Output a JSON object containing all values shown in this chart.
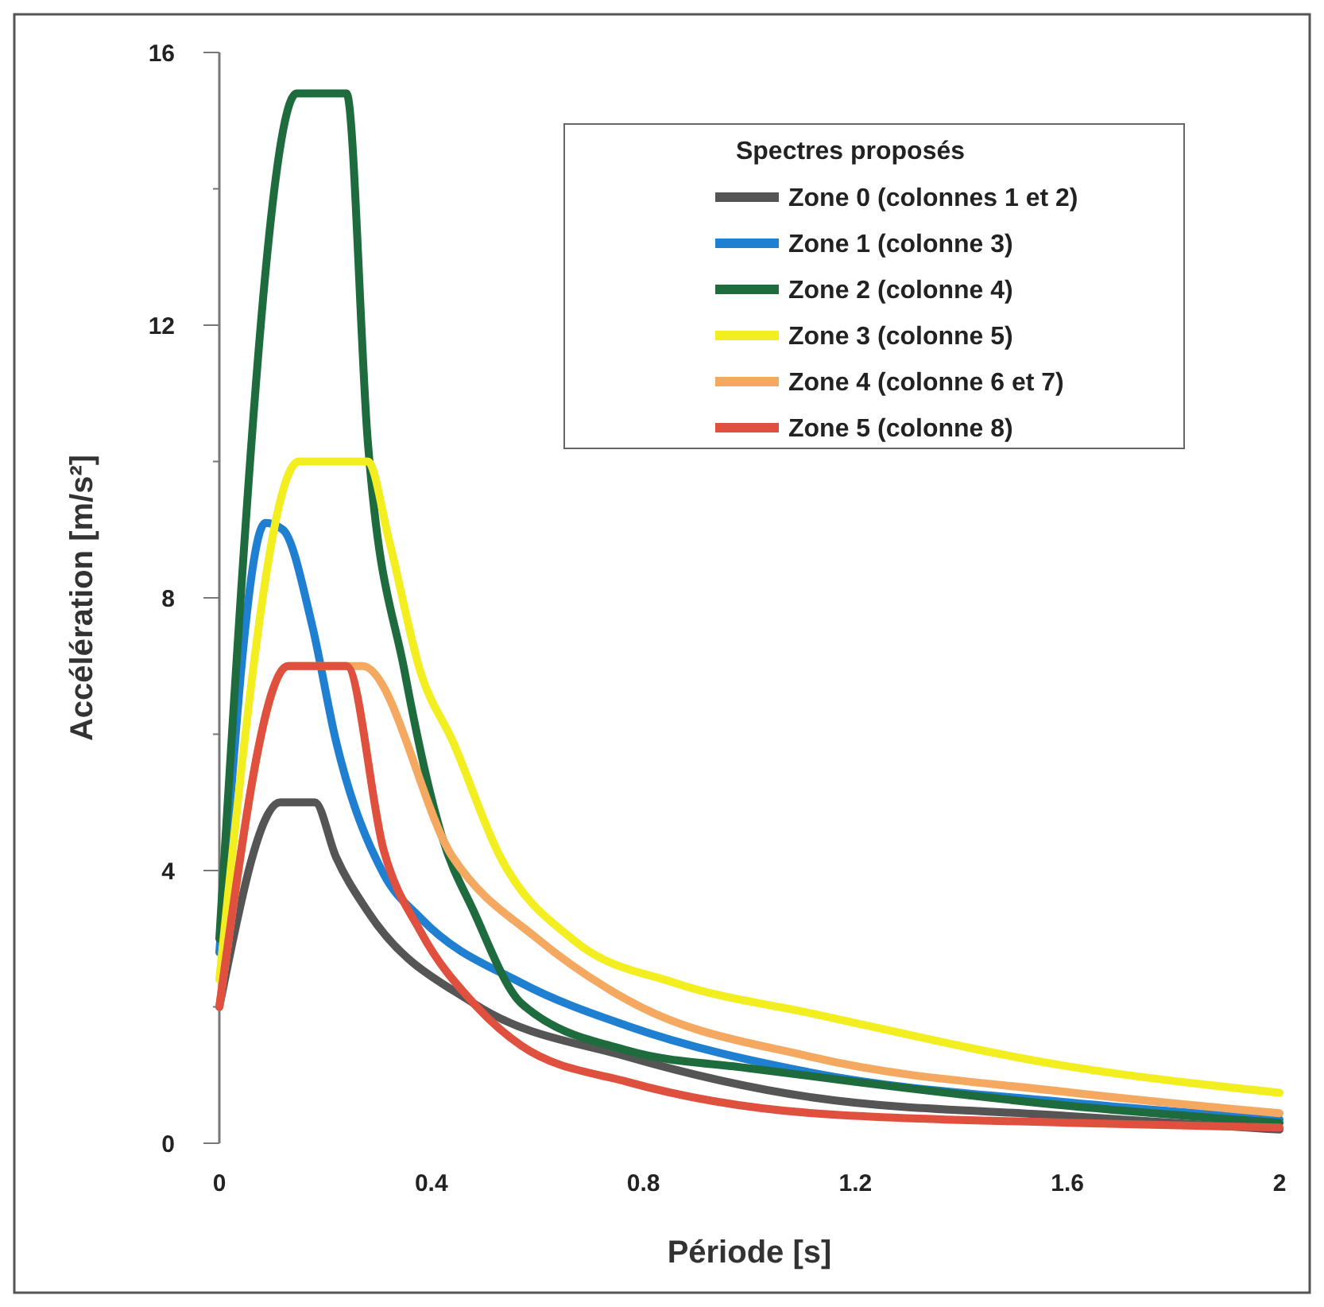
{
  "chart_data": {
    "type": "line",
    "xlabel": "Période [s]",
    "ylabel": "Accélération [m/s²]",
    "legend_title": "Spectres proposés",
    "legend": "top right",
    "xlim": [
      0,
      2
    ],
    "ylim": [
      0,
      16
    ],
    "xticks": [
      0,
      0.4,
      0.8,
      1.2,
      1.6,
      2
    ],
    "yticks": [
      0,
      {
        "value": 2,
        "label": null
      },
      4,
      {
        "value": 6,
        "label": null
      },
      8,
      {
        "value": 10,
        "label": null
      },
      12,
      {
        "value": 14,
        "label": null
      },
      16
    ],
    "series": [
      {
        "name": "Zone 0 (colonnes 1 et 2)",
        "color": "#555555",
        "x": [
          0,
          0.115,
          0.18,
          0.22,
          0.28,
          0.48,
          0.77,
          1.12,
          1.6,
          2
        ],
        "values": [
          2,
          5,
          5,
          4.2,
          3.4,
          2.05,
          1.27,
          0.67,
          0.4,
          0.2
        ]
      },
      {
        "name": "Zone 1 (colonne 3)",
        "color": "#1f7fd0",
        "x": [
          0,
          0.087,
          0.12,
          0.175,
          0.22,
          0.31,
          0.38,
          0.57,
          0.77,
          1.12,
          1.6,
          2
        ],
        "values": [
          2.8,
          9.1,
          9,
          7.6,
          5.9,
          3.95,
          3.3,
          2.35,
          1.72,
          1.03,
          0.6,
          0.35
        ]
      },
      {
        "name": "Zone 2 (colonne 4)",
        "color": "#1e6b3e",
        "x": [
          0,
          0.146,
          0.24,
          0.28,
          0.35,
          0.42,
          0.48,
          0.57,
          0.77,
          1,
          1.2,
          1.6,
          2
        ],
        "values": [
          3,
          15.4,
          15.4,
          10.3,
          6.9,
          4.5,
          3.4,
          2.05,
          1.36,
          1.1,
          0.9,
          0.55,
          0.3
        ]
      },
      {
        "name": "Zone 3 (colonne 5)",
        "color": "#f2ee20",
        "x": [
          0,
          0.15,
          0.28,
          0.32,
          0.38,
          0.44,
          0.53,
          0.67,
          0.86,
          1.12,
          1.6,
          2
        ],
        "values": [
          2.4,
          10,
          10,
          8.85,
          6.9,
          5.9,
          4.2,
          2.97,
          2.35,
          1.9,
          1.13,
          0.74
        ]
      },
      {
        "name": "Zone 4 (colonne 6 et 7)",
        "color": "#f5a860",
        "x": [
          0,
          0.13,
          0.27,
          0.44,
          0.6,
          0.77,
          1.12,
          1.6,
          2
        ],
        "values": [
          2,
          7,
          7,
          4.2,
          3,
          2.1,
          1.26,
          0.75,
          0.44
        ]
      },
      {
        "name": "Zone 5 (colonne 8)",
        "color": "#e0503e",
        "x": [
          0,
          0.13,
          0.24,
          0.31,
          0.38,
          0.48,
          0.57,
          0.77,
          1.12,
          1.6,
          2
        ],
        "values": [
          2,
          7,
          7,
          4.3,
          3.1,
          2.05,
          1.43,
          0.9,
          0.44,
          0.3,
          0.23
        ]
      }
    ]
  }
}
